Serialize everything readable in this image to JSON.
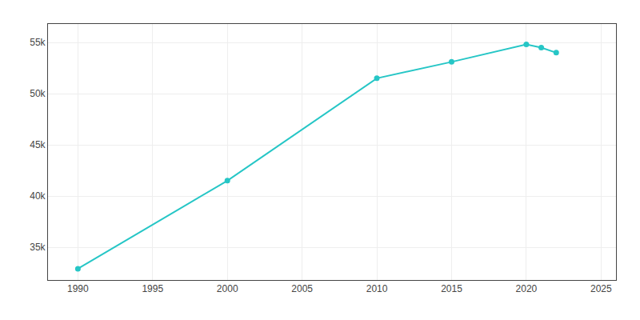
{
  "chart_data": {
    "type": "line",
    "x": [
      1990,
      2000,
      2010,
      2015,
      2020,
      2021,
      2022
    ],
    "values": [
      32900,
      41500,
      51500,
      53100,
      54800,
      54500,
      54000
    ],
    "color": "#26c6c6",
    "marker": "circle",
    "xlim": [
      1988,
      2026
    ],
    "ylim": [
      31800,
      56800
    ],
    "xticks": [
      1990,
      1995,
      2000,
      2005,
      2010,
      2015,
      2020,
      2025
    ],
    "yticks": [
      {
        "value": 35000,
        "label": "35k"
      },
      {
        "value": 40000,
        "label": "40k"
      },
      {
        "value": 45000,
        "label": "45k"
      },
      {
        "value": 50000,
        "label": "50k"
      },
      {
        "value": 55000,
        "label": "55k"
      }
    ],
    "grid": true
  }
}
